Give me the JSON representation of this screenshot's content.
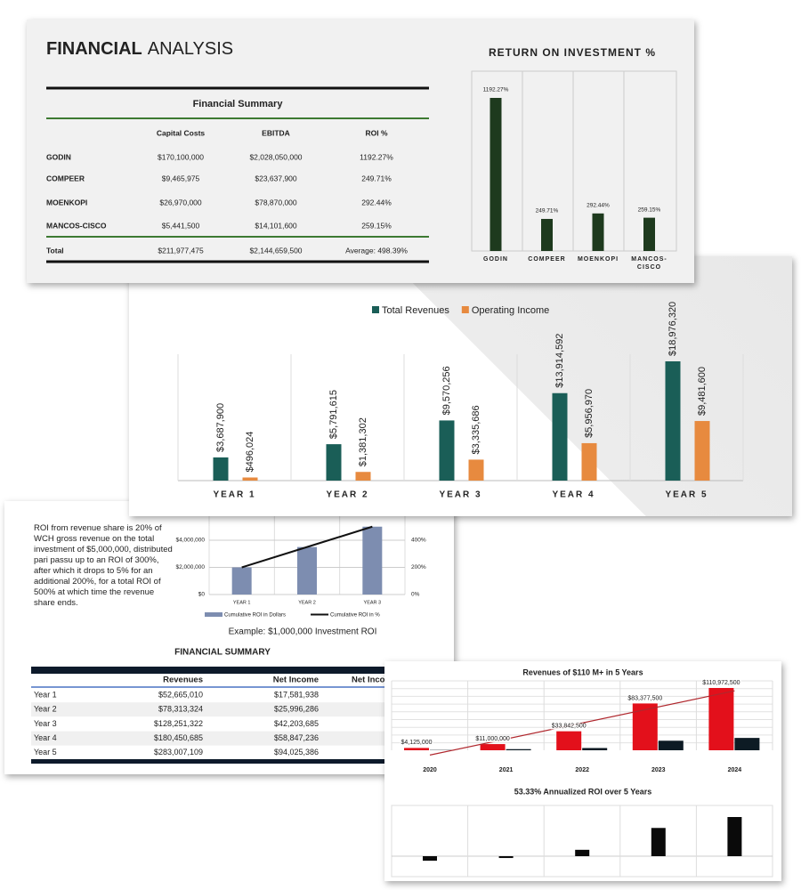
{
  "analysis": {
    "title_bold": "FINANCIAL",
    "title_rest": "ANALYSIS",
    "table": {
      "title": "Financial Summary",
      "columns": [
        "Capital Costs",
        "EBITDA",
        "ROI %"
      ],
      "rows": [
        [
          "GODIN",
          "$170,100,000",
          "$2,028,050,000",
          "1192.27%"
        ],
        [
          "COMPEER",
          "$9,465,975",
          "$23,637,900",
          "249.71%"
        ],
        [
          "MOENKOPI",
          "$26,970,000",
          "$78,870,000",
          "292.44%"
        ],
        [
          "MANCOS-CISCO",
          "$5,441,500",
          "$14,101,600",
          "259.15%"
        ]
      ],
      "total": [
        "Total",
        "$211,977,475",
        "$2,144,659,500",
        "Average:  498.39%"
      ]
    }
  },
  "chart_data": [
    {
      "type": "bar",
      "title": "RETURN ON INVESTMENT %",
      "categories": [
        "GODIN",
        "COMPEER",
        "MOENKOPI",
        "MANCOS-CISCO"
      ],
      "values": [
        1192.27,
        249.71,
        292.44,
        259.15
      ],
      "value_labels": [
        "1192.27%",
        "249.71%",
        "292.44%",
        "259.15%"
      ],
      "color": "#1e3a1e"
    },
    {
      "type": "grouped-bar",
      "categories": [
        "YEAR 1",
        "YEAR 2",
        "YEAR 3",
        "YEAR 4",
        "YEAR 5"
      ],
      "series": [
        {
          "name": "Total Revenues",
          "color": "#1a5e57",
          "values": [
            3687900,
            5791615,
            9570256,
            13914592,
            18976320
          ],
          "value_labels": [
            "$3,687,900",
            "$5,791,615",
            "$9,570,256",
            "$13,914,592",
            "$18,976,320"
          ]
        },
        {
          "name": "Operating Income",
          "color": "#e78a3f",
          "values": [
            496024,
            1381302,
            3335686,
            5956970,
            9481600
          ],
          "value_labels": [
            "$496,024",
            "$1,381,302",
            "$3,335,686",
            "$5,956,970",
            "$9,481,600"
          ]
        }
      ]
    },
    {
      "type": "combo",
      "title": "Example: $1,000,000 Investment ROI",
      "categories": [
        "YEAR 1",
        "YEAR 2",
        "YEAR 3"
      ],
      "ylim": [
        0,
        6000000
      ],
      "yticks": [
        {
          "value": 0,
          "label": "$0"
        },
        {
          "value": 2000000,
          "label": "$2,000,000"
        },
        {
          "value": 4000000,
          "label": "$4,000,000"
        }
      ],
      "y2lim": [
        0,
        600
      ],
      "y2ticks": [
        {
          "value": 0,
          "label": "0%"
        },
        {
          "value": 200,
          "label": "200%"
        },
        {
          "value": 400,
          "label": "400%"
        }
      ],
      "series": [
        {
          "name": "Cumulative ROI in Dollars",
          "type": "bar",
          "color": "#7d8db0",
          "values": [
            2000000,
            3500000,
            5000000
          ]
        },
        {
          "name": "Cumulative ROI in %",
          "type": "line",
          "axis": "y2",
          "color": "#111111",
          "values": [
            200,
            350,
            500
          ]
        }
      ]
    },
    {
      "type": "grouped-bar-trend",
      "title": "Revenues of $110 M+ in 5 Years",
      "categories": [
        "2020",
        "2021",
        "2022",
        "2023",
        "2024"
      ],
      "series": [
        {
          "color": "#e3101b",
          "values": [
            4125000,
            11000000,
            33842500,
            83377500,
            110972500
          ],
          "value_labels": [
            "$4,125,000",
            "$11,000,000",
            "$33,842,500",
            "$83,377,500",
            "$110,972,500"
          ]
        },
        {
          "color": "#0d1b24",
          "values": [
            500000,
            2000000,
            4000000,
            17000000,
            22000000
          ]
        }
      ],
      "trendline_color": "#b0282e"
    },
    {
      "type": "simple-bar",
      "title": "53.33% Annualized ROI over 5 Years",
      "values": [
        -5,
        -2,
        7,
        31,
        43
      ],
      "color": "#0a0a0a"
    }
  ],
  "note": "ROI from revenue share is 20% of WCH gross revenue on the total investment of $5,000,000, distributed pari passu up to an ROI of 300%, after which it drops to 5%  for an additional 200%, for a total ROI of 500% at which time the revenue share ends.",
  "summary": {
    "title": "FINANCIAL SUMMARY",
    "columns": [
      "Revenues",
      "Net Income",
      "Net Income"
    ],
    "rows": [
      [
        "Year 1",
        "$52,665,010",
        "$17,581,938"
      ],
      [
        "Year 2",
        "$78,313,324",
        "$25,996,286"
      ],
      [
        "Year 3",
        "$128,251,322",
        "$42,203,685"
      ],
      [
        "Year 4",
        "$180,450,685",
        "$58,847,236"
      ],
      [
        "Year 5",
        "$283,007,109",
        "$94,025,386"
      ]
    ]
  }
}
